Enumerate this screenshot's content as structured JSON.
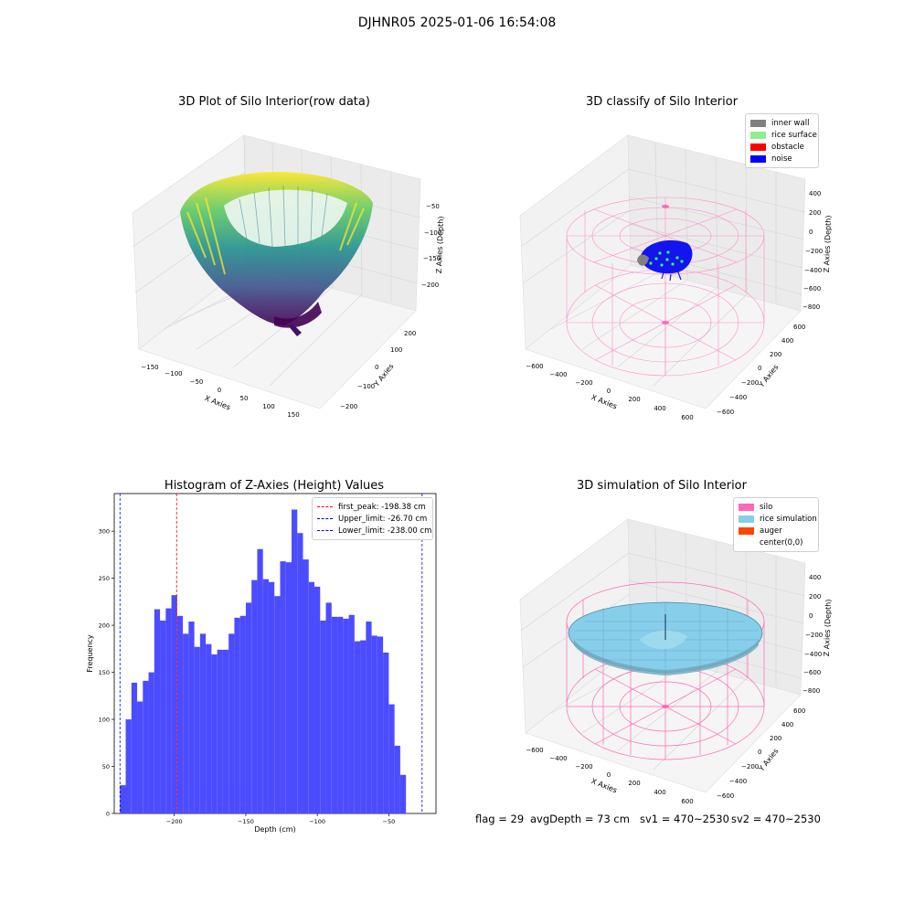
{
  "suptitle": "DJHNR05 2025-01-06 16:54:08",
  "chart_data": [
    {
      "type": "scatter",
      "title": "3D Plot of Silo Interior(row data)",
      "xlabel": "X Axies",
      "ylabel": "Y Axies",
      "zlabel": "Z Axies (Depth)",
      "x_ticks": [
        "−150",
        "−100",
        "−50",
        "0",
        "50",
        "100",
        "150"
      ],
      "y_ticks": [
        "−200",
        "−100",
        "0",
        "100",
        "200"
      ],
      "z_ticks": [
        "−50",
        "−100",
        "−150",
        "−200"
      ],
      "xlim": [
        -170,
        170
      ],
      "ylim": [
        -240,
        240
      ],
      "zlim": [
        -240,
        -25
      ],
      "colormap": "viridis"
    },
    {
      "type": "scatter",
      "title": "3D classify of Silo Interior",
      "xlabel": "X Axies",
      "ylabel": "Y Axies",
      "zlabel": "Z Axies (Depth)",
      "x_ticks": [
        "−600",
        "−400",
        "−200",
        "0",
        "200",
        "400",
        "600"
      ],
      "y_ticks": [
        "−600",
        "−400",
        "−200",
        "0",
        "200",
        "400",
        "600"
      ],
      "z_ticks": [
        "400",
        "200",
        "0",
        "−200",
        "−400",
        "−600",
        "−800"
      ],
      "xlim": [
        -650,
        650
      ],
      "ylim": [
        -650,
        650
      ],
      "zlim": [
        -850,
        450
      ],
      "legend_position": "upper right",
      "legend": [
        {
          "label": "inner wall",
          "color": "#808080"
        },
        {
          "label": "rice surface",
          "color": "#90ee90"
        },
        {
          "label": "obstacle",
          "color": "#ff0000"
        },
        {
          "label": "noise",
          "color": "#0000ff"
        }
      ]
    },
    {
      "type": "bar",
      "title": "Histogram of Z-Axies (Height) Values",
      "xlabel": "Depth (cm)",
      "ylabel": "Frequency",
      "bin_start": -238,
      "bin_width": 4,
      "xlim": [
        -242,
        -17
      ],
      "ylim": [
        0,
        340
      ],
      "x_ticks": [
        -200,
        -150,
        -100,
        -50
      ],
      "y_ticks": [
        0,
        50,
        100,
        150,
        200,
        250,
        300
      ],
      "bar_color": "#4c4cff",
      "values": [
        30,
        100,
        139,
        119,
        141,
        150,
        217,
        205,
        218,
        232,
        210,
        191,
        204,
        177,
        191,
        180,
        169,
        174,
        174,
        191,
        208,
        210,
        224,
        248,
        281,
        249,
        246,
        231,
        268,
        267,
        323,
        298,
        270,
        246,
        241,
        205,
        224,
        209,
        209,
        207,
        211,
        183,
        184,
        204,
        189,
        188,
        171,
        116,
        72,
        41
      ],
      "vlines": [
        {
          "label": "first_peak: -198.38 cm",
          "x": -198.38,
          "color": "#ff0000"
        },
        {
          "label": "Upper_limit: -26.70 cm",
          "x": -26.7,
          "color": "#0000ff"
        },
        {
          "label": "Lower_limit: -238.00 cm",
          "x": -238.0,
          "color": "#0000ff"
        }
      ],
      "legend_position": "upper right"
    },
    {
      "type": "surface",
      "title": "3D simulation of Silo Interior",
      "xlabel": "X Axies",
      "ylabel": "Y Axies",
      "zlabel": "Z Axies (Depth)",
      "x_ticks": [
        "−600",
        "−400",
        "−200",
        "0",
        "200",
        "400",
        "600"
      ],
      "y_ticks": [
        "−600",
        "−400",
        "−200",
        "0",
        "200",
        "400",
        "600"
      ],
      "z_ticks": [
        "400",
        "200",
        "0",
        "−200",
        "−400",
        "−600",
        "−800"
      ],
      "xlim": [
        -650,
        650
      ],
      "ylim": [
        -650,
        650
      ],
      "zlim": [
        -850,
        450
      ],
      "legend_position": "upper right",
      "legend": [
        {
          "label": "silo",
          "color": "#ff69b4"
        },
        {
          "label": "rice simulation",
          "color": "#87ceeb"
        },
        {
          "label": "auger",
          "color": "#ff4500"
        },
        {
          "label": "center(0,0)",
          "color": "#ffffff"
        }
      ]
    }
  ],
  "footer": {
    "flag": "flag = 29",
    "avg_depth": "avgDepth = 73 cm",
    "sv1": "sv1 = 470~2530",
    "sv2": "sv2 = 470~2530"
  }
}
